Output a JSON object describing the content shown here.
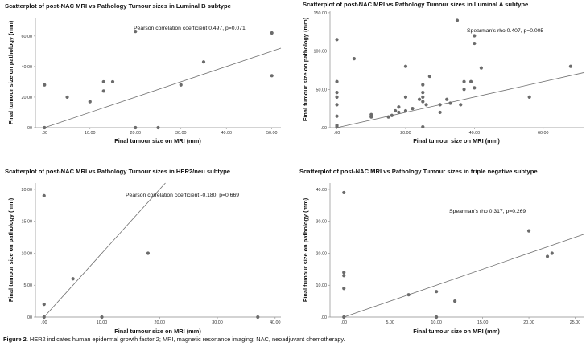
{
  "chart_data": [
    {
      "type": "scatter",
      "title": "Scatterplot of post-NAC MRI vs Pathology Tumour sizes in Luminal B subtype",
      "xlabel": "Final tumour size on MRI (mm)",
      "ylabel": "Final tumour size on pathology (mm)",
      "annotation": "Pearson correlation coefficient 0.497, p=0.071",
      "xlim": [
        -2,
        52
      ],
      "ylim": [
        0,
        72
      ],
      "xticks": [
        0,
        10,
        20,
        30,
        40,
        50
      ],
      "xtick_labels": [
        ".00",
        "10.00",
        "20.00",
        "30.00",
        "40.00",
        "50.00"
      ],
      "yticks": [
        0,
        20,
        40,
        60
      ],
      "ytick_labels": [
        ".00",
        "20.00",
        "40.00",
        "60.00"
      ],
      "reference_line": "y=x",
      "points": [
        {
          "x": 0,
          "y": 28
        },
        {
          "x": 0,
          "y": 0
        },
        {
          "x": 5,
          "y": 20
        },
        {
          "x": 10,
          "y": 17
        },
        {
          "x": 13,
          "y": 24
        },
        {
          "x": 13,
          "y": 30
        },
        {
          "x": 15,
          "y": 30
        },
        {
          "x": 20,
          "y": 63
        },
        {
          "x": 20,
          "y": 0
        },
        {
          "x": 25,
          "y": 0
        },
        {
          "x": 30,
          "y": 28
        },
        {
          "x": 35,
          "y": 43
        },
        {
          "x": 50,
          "y": 62
        },
        {
          "x": 50,
          "y": 34
        }
      ]
    },
    {
      "type": "scatter",
      "title": "Scatterplot of post-NAC MRI vs Pathology Tumour sizes in Luminal A subtype",
      "xlabel": "Final tumour size on MRI (mm)",
      "ylabel": "Final tumour size on pathology (mm)",
      "annotation": "Spearman's rho 0.407, p=0.005",
      "xlim": [
        -2,
        72
      ],
      "ylim": [
        0,
        152
      ],
      "xticks": [
        0,
        20,
        40,
        60
      ],
      "xtick_labels": [
        ".00",
        "20.00",
        "40.00",
        "60.00"
      ],
      "yticks": [
        0,
        50,
        100,
        150
      ],
      "ytick_labels": [
        ".00",
        "50.00",
        "100.00",
        "150.00"
      ],
      "reference_line": "y=x",
      "points": [
        {
          "x": 0,
          "y": 115
        },
        {
          "x": 0,
          "y": 60
        },
        {
          "x": 0,
          "y": 46
        },
        {
          "x": 0,
          "y": 40
        },
        {
          "x": 0,
          "y": 30
        },
        {
          "x": 0,
          "y": 15
        },
        {
          "x": 0,
          "y": 3
        },
        {
          "x": 0,
          "y": 1
        },
        {
          "x": 5,
          "y": 90
        },
        {
          "x": 10,
          "y": 17
        },
        {
          "x": 10,
          "y": 14
        },
        {
          "x": 15,
          "y": 14
        },
        {
          "x": 16,
          "y": 16
        },
        {
          "x": 17,
          "y": 22
        },
        {
          "x": 18,
          "y": 27
        },
        {
          "x": 18,
          "y": 20
        },
        {
          "x": 20,
          "y": 80
        },
        {
          "x": 20,
          "y": 40
        },
        {
          "x": 20,
          "y": 22
        },
        {
          "x": 22,
          "y": 25
        },
        {
          "x": 24,
          "y": 37
        },
        {
          "x": 25,
          "y": 56
        },
        {
          "x": 25,
          "y": 46
        },
        {
          "x": 25,
          "y": 40
        },
        {
          "x": 25,
          "y": 34
        },
        {
          "x": 25,
          "y": 1
        },
        {
          "x": 26,
          "y": 30
        },
        {
          "x": 27,
          "y": 67
        },
        {
          "x": 30,
          "y": 30
        },
        {
          "x": 30,
          "y": 20
        },
        {
          "x": 32,
          "y": 37
        },
        {
          "x": 33,
          "y": 32
        },
        {
          "x": 35,
          "y": 140
        },
        {
          "x": 36,
          "y": 30
        },
        {
          "x": 37,
          "y": 60
        },
        {
          "x": 37,
          "y": 50
        },
        {
          "x": 39,
          "y": 60
        },
        {
          "x": 40,
          "y": 120
        },
        {
          "x": 40,
          "y": 110
        },
        {
          "x": 40,
          "y": 52
        },
        {
          "x": 42,
          "y": 78
        },
        {
          "x": 56,
          "y": 40
        },
        {
          "x": 68,
          "y": 80
        }
      ]
    },
    {
      "type": "scatter",
      "title": "Scatterplot of post-NAC MRI vs Pathology Tumour sizes in HER2/neu subtype",
      "xlabel": "Final tumour size on MRI (mm)",
      "ylabel": "Final tumour size on pathology (mm)",
      "annotation": "Pearson correlation coefficient -0.180, p=0.669",
      "xlim": [
        -1.5,
        41
      ],
      "ylim": [
        0,
        21
      ],
      "xticks": [
        0,
        10,
        20,
        30,
        40
      ],
      "xtick_labels": [
        ".00",
        "10.00",
        "20.00",
        "30.00",
        "40.00"
      ],
      "yticks": [
        0,
        5,
        10,
        15,
        20
      ],
      "ytick_labels": [
        ".00",
        "5.00",
        "10.00",
        "15.00",
        "20.00"
      ],
      "reference_line": "y=x",
      "points": [
        {
          "x": 0,
          "y": 19
        },
        {
          "x": 0,
          "y": 2
        },
        {
          "x": 0,
          "y": 0
        },
        {
          "x": 5,
          "y": 6
        },
        {
          "x": 10,
          "y": 0
        },
        {
          "x": 18,
          "y": 10
        },
        {
          "x": 37,
          "y": 0
        }
      ]
    },
    {
      "type": "scatter",
      "title": "Scatterplot of post-NAC MRI vs Pathology Tumour sizes in triple negative subtype",
      "xlabel": "Final tumour size on MRI (mm)",
      "ylabel": "Final tumour size on pathology (mm)",
      "annotation": "Spearman's rho 0.317, p=0.269",
      "xlim": [
        -1.5,
        26
      ],
      "ylim": [
        0,
        42
      ],
      "xticks": [
        0,
        5,
        10,
        15,
        20,
        25
      ],
      "xtick_labels": [
        ".00",
        "5.00",
        "10.00",
        "15.00",
        "20.00",
        "25.00"
      ],
      "yticks": [
        0,
        10,
        20,
        30,
        40
      ],
      "ytick_labels": [
        ".00",
        "10.00",
        "20.00",
        "30.00",
        "40.00"
      ],
      "reference_line": "y=x",
      "points": [
        {
          "x": 0,
          "y": 39
        },
        {
          "x": 0,
          "y": 14
        },
        {
          "x": 0,
          "y": 13
        },
        {
          "x": 0,
          "y": 9
        },
        {
          "x": 0,
          "y": 0
        },
        {
          "x": 7,
          "y": 7
        },
        {
          "x": 10,
          "y": 8
        },
        {
          "x": 10,
          "y": 0
        },
        {
          "x": 12,
          "y": 5
        },
        {
          "x": 20,
          "y": 27
        },
        {
          "x": 22,
          "y": 19
        },
        {
          "x": 22.5,
          "y": 20
        }
      ]
    }
  ],
  "caption": {
    "label": "Figure 2.",
    "text": " HER2 indicates human epidermal growth factor 2; MRI, magnetic resonance imaging; NAC, neoadjuvant chemotherapy."
  },
  "colors": {
    "point": "#6b6b6b",
    "line": "#6f6f6f",
    "axis": "#8a8a8a",
    "background": "#ffffff"
  }
}
